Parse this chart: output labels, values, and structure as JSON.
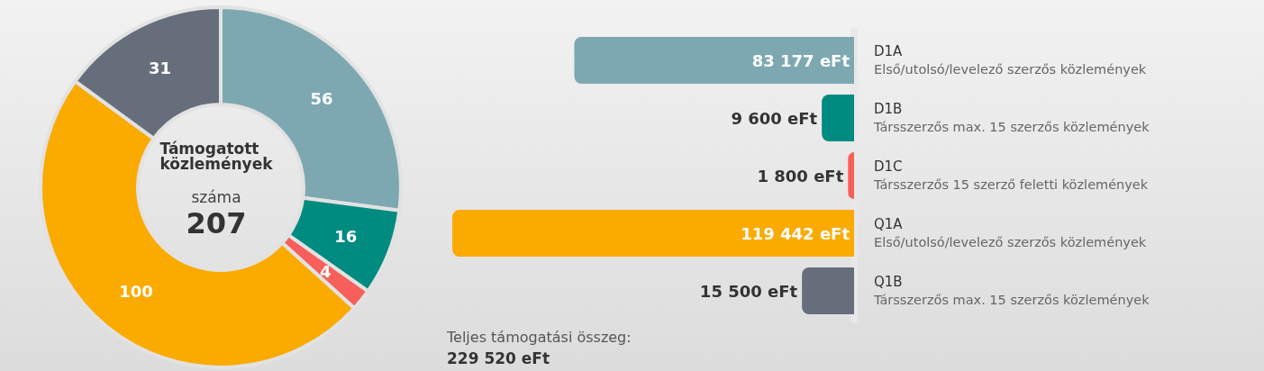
{
  "chart_data": [
    {
      "type": "donut",
      "title": "Támogatott közlemények",
      "subtitle": "száma",
      "annotations": [
        "207"
      ],
      "categories": [
        null,
        null,
        null,
        null,
        null
      ],
      "values": [
        56,
        16,
        4,
        100,
        31
      ],
      "colors": [
        "#7ea8b1",
        "#008b80",
        "#f7605a",
        "#fbaa00",
        "#666e7c"
      ],
      "data_labels": true
    },
    {
      "type": "bar",
      "orientation": "horizontal",
      "categories": [
        "D1A\nElső/utolsó/levelező szerzős közlemények",
        "D1B\nTársszerzős max. 15 szerzős közlemények",
        "D1C\nTársszerzős 15 szerző feletti közlemények",
        "Q1A\nElső/utolsó/levelező szerzős közlemények",
        "Q1B\nTársszerzős max. 15 szerzős közlemények"
      ],
      "values": [
        83177,
        9600,
        1800,
        119442,
        15500
      ],
      "colors": [
        "#7ea8b1",
        "#008b80",
        "#f7605a",
        "#fbaa00",
        "#666e7c"
      ],
      "value_labels": [
        "83 177 eFt",
        "9 600 eFt",
        "1 800 eFt",
        "119 442 eFt",
        "15 500 eFt"
      ],
      "annotations": [
        "Teljes támogatási összeg:",
        "229 520 eFt"
      ]
    }
  ]
}
